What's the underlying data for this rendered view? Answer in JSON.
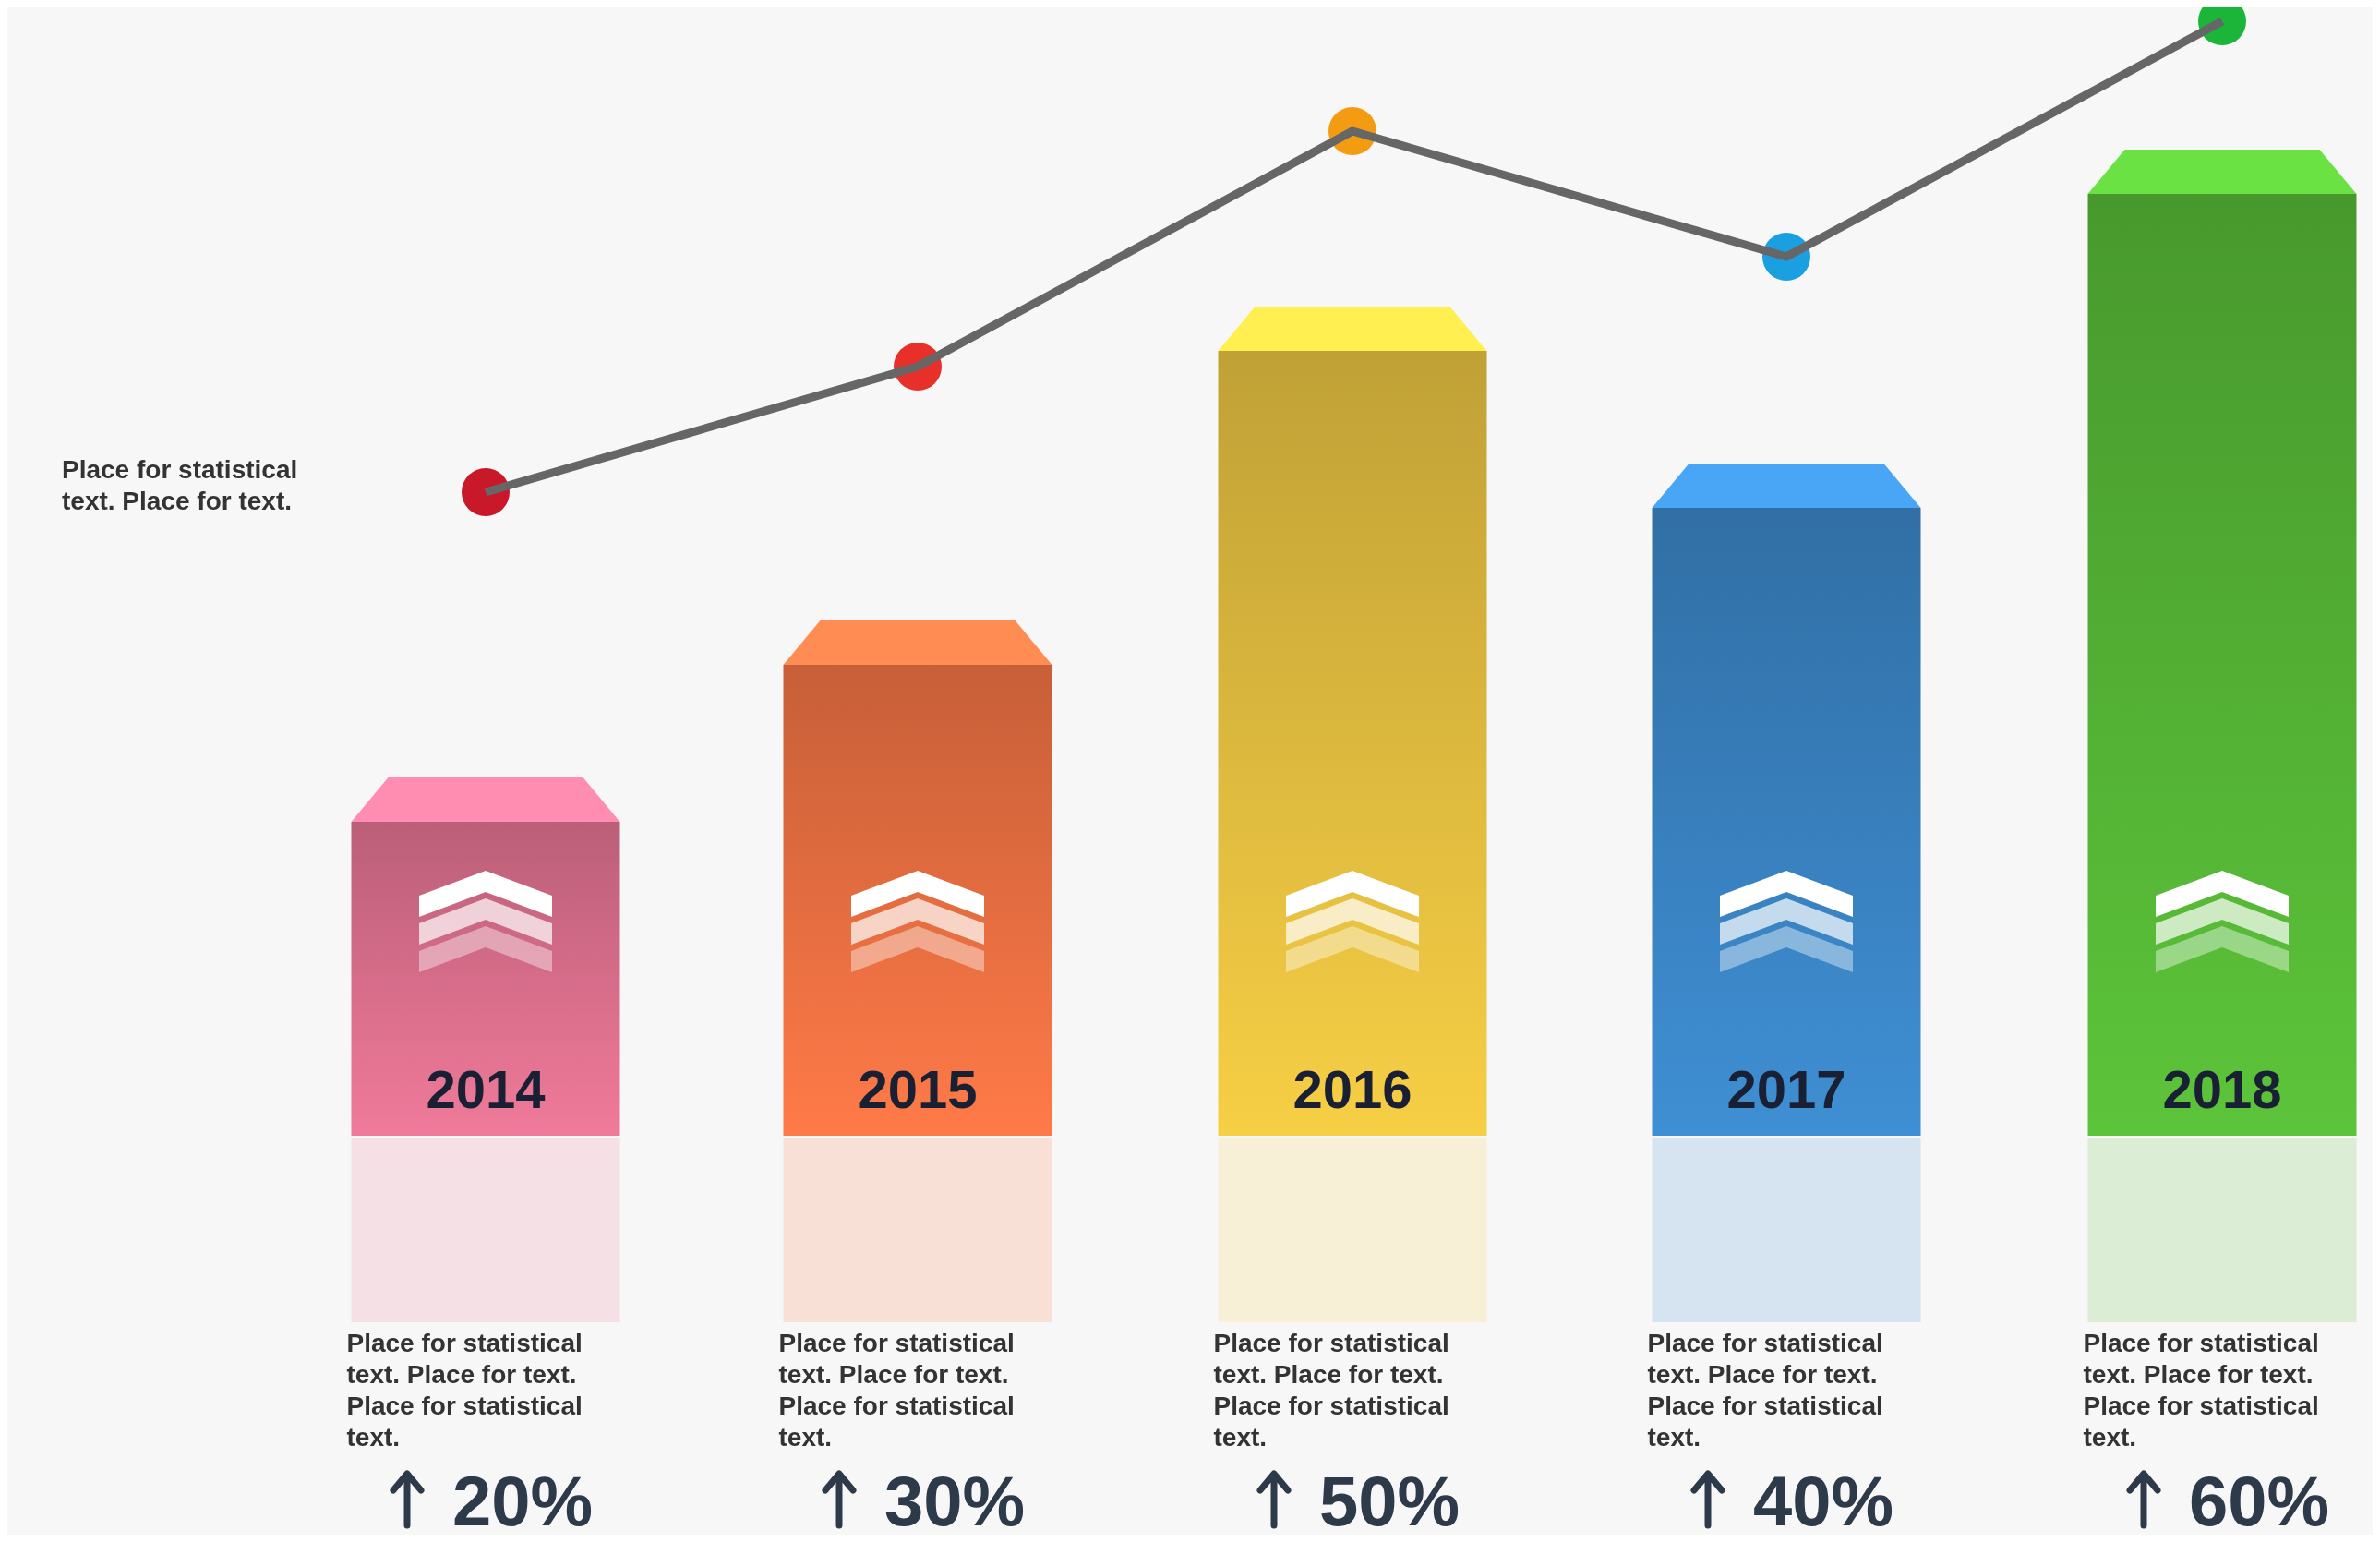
{
  "chart_data": {
    "type": "bar",
    "categories": [
      "2014",
      "2015",
      "2016",
      "2017",
      "2018"
    ],
    "series": [
      {
        "values": [
          20,
          30,
          50,
          40,
          60
        ],
        "colors": [
          "#f07a9a",
          "#ff7a48",
          "#f7cf45",
          "#3f8fd4",
          "#5cc43a"
        ],
        "value_labels": [
          "20%",
          "30%",
          "50%",
          "40%",
          "60%"
        ]
      },
      {
        "type": "scatter",
        "colors": [
          "#c8182a",
          "#e8302a",
          "#f39c12",
          "#1aa0e0",
          "#1bb53a"
        ],
        "values": [
          41,
          49,
          64,
          56,
          71
        ],
        "marker": "circle"
      },
      {
        "type": "line",
        "color": "#666666",
        "values": [
          41,
          49,
          64,
          56,
          71
        ]
      }
    ],
    "annotations": [
      "Place for statistical text. Place for text.",
      "Place for statistical text. Place for text. Place for statistical text.",
      "Place for statistical text. Place for text. Place for statistical text.",
      "Place for statistical text. Place for text. Place for statistical text.",
      "Place for statistical text. Place for text. Place for statistical text.",
      "Place for statistical text. Place for text. Place for statistical text."
    ]
  }
}
